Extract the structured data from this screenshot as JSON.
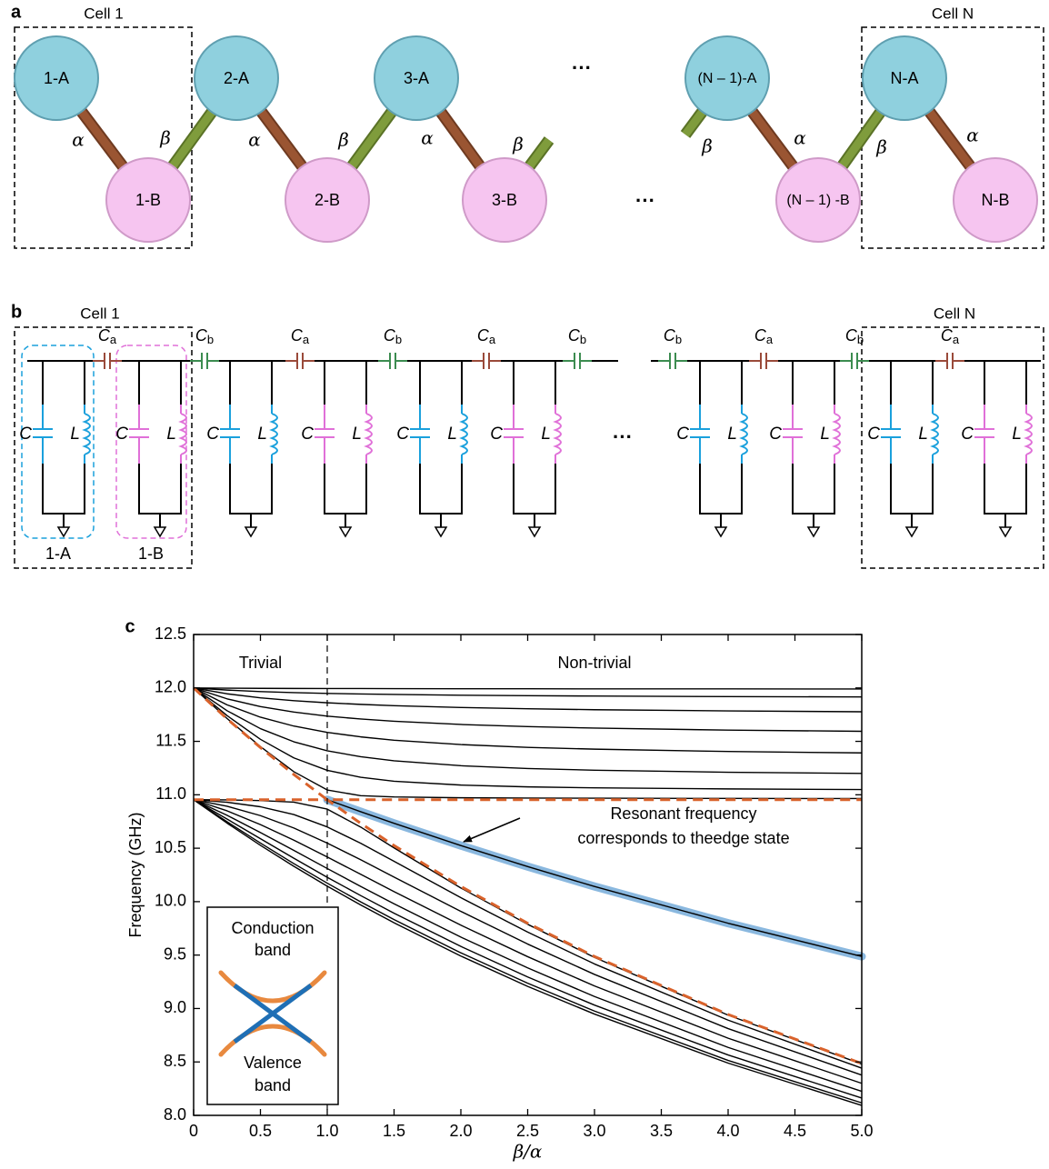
{
  "panel_a": {
    "label": "a",
    "cells": [
      "Cell 1",
      "Cell N"
    ],
    "sites": [
      "1-A",
      "1-B",
      "2-A",
      "2-B",
      "3-A",
      "3-B",
      "(N – 1)-A",
      "(N – 1) -B",
      "N-A",
      "N-B"
    ],
    "couplings": [
      "α",
      "β",
      "α",
      "β",
      "α",
      "β",
      "β",
      "α",
      "β",
      "α"
    ],
    "ellipses": [
      "···",
      "···"
    ]
  },
  "panel_b": {
    "label": "b",
    "cells": [
      "Cell 1",
      "Cell N"
    ],
    "capacitors": [
      {
        "symbol": "C",
        "sub": "a"
      },
      {
        "symbol": "C",
        "sub": "b"
      },
      {
        "symbol": "C",
        "sub": "a"
      },
      {
        "symbol": "C",
        "sub": "b"
      },
      {
        "symbol": "C",
        "sub": "a"
      },
      {
        "symbol": "C",
        "sub": "b"
      },
      {
        "symbol": "C",
        "sub": "b"
      },
      {
        "symbol": "C",
        "sub": "a"
      },
      {
        "symbol": "C",
        "sub": "b"
      },
      {
        "symbol": "C",
        "sub": "a"
      }
    ],
    "resonators": [
      {
        "c": "C",
        "l": "L"
      },
      {
        "c": "C",
        "l": "L"
      },
      {
        "c": "C",
        "l": "L"
      },
      {
        "c": "C",
        "l": "L"
      },
      {
        "c": "C",
        "l": "L"
      },
      {
        "c": "C",
        "l": "L"
      },
      {
        "c": "C",
        "l": "L"
      },
      {
        "c": "C",
        "l": "L"
      },
      {
        "c": "C",
        "l": "L"
      },
      {
        "c": "C",
        "l": "L"
      }
    ],
    "groups": [
      "1-A",
      "1-B"
    ],
    "ellipsis": "···"
  },
  "chart_data": {
    "type": "line",
    "panel_label": "c",
    "x_label": "β/α",
    "y_label": "Frequency (GHz)",
    "regions": [
      "Trivial",
      "Non-trivial"
    ],
    "divider_x": 1,
    "annotation": [
      "Resonant frequency",
      "corresponds to theedge state"
    ],
    "inset": {
      "top": [
        "Conduction",
        "band"
      ],
      "bottom": [
        "Valence",
        "band"
      ]
    },
    "xlim": [
      0,
      5
    ],
    "ylim": [
      8,
      12.5
    ],
    "xticks": [
      0,
      0.5,
      {
        "value": 1,
        "label": "1.0"
      },
      1.5,
      {
        "value": 2,
        "label": "2.0"
      },
      2.5,
      {
        "value": 3,
        "label": "3.0"
      },
      3.5,
      {
        "value": 4,
        "label": "4.0"
      },
      4.5,
      {
        "value": 5,
        "label": "5.0"
      }
    ],
    "yticks": [
      {
        "value": 8,
        "label": "8.0"
      },
      8.5,
      {
        "value": 9,
        "label": "9.0"
      },
      9.5,
      {
        "value": 10,
        "label": "10.0"
      },
      10.5,
      {
        "value": 11,
        "label": "11.0"
      },
      11.5,
      {
        "value": 12,
        "label": "12.0"
      },
      12.5
    ],
    "x": [
      0,
      0.25,
      0.5,
      0.75,
      1,
      1.25,
      1.5,
      2,
      2.5,
      3,
      4,
      5
    ],
    "series": [
      {
        "color": "#000000",
        "values": [
          12,
          11.998,
          11.996,
          11.995,
          11.994,
          11.994,
          11.993,
          11.992,
          11.992,
          11.991,
          11.991,
          11.99
        ]
      },
      {
        "color": "#000000",
        "values": [
          12,
          11.98,
          11.966,
          11.956,
          11.949,
          11.943,
          11.939,
          11.932,
          11.927,
          11.924,
          11.919,
          11.916
        ]
      },
      {
        "color": "#000000",
        "values": [
          12,
          11.945,
          11.907,
          11.881,
          11.861,
          11.846,
          11.834,
          11.817,
          11.805,
          11.796,
          11.785,
          11.777
        ]
      },
      {
        "color": "#000000",
        "values": [
          12,
          11.898,
          11.825,
          11.774,
          11.736,
          11.709,
          11.688,
          11.658,
          11.638,
          11.624,
          11.605,
          11.594
        ]
      },
      {
        "color": "#000000",
        "values": [
          12,
          11.842,
          11.726,
          11.643,
          11.584,
          11.542,
          11.511,
          11.47,
          11.444,
          11.427,
          11.405,
          11.392
        ]
      },
      {
        "color": "#000000",
        "values": [
          12,
          11.787,
          11.619,
          11.496,
          11.412,
          11.356,
          11.318,
          11.272,
          11.246,
          11.23,
          11.211,
          11.2
        ]
      },
      {
        "color": "#000000",
        "values": [
          12,
          11.741,
          11.519,
          11.345,
          11.229,
          11.164,
          11.127,
          11.091,
          11.074,
          11.065,
          11.055,
          11.049
        ]
      },
      {
        "color": "#000000",
        "values": [
          12,
          11.714,
          11.451,
          11.216,
          11.045,
          10.992,
          10.98,
          10.972,
          10.969,
          10.968,
          10.966,
          10.965
        ]
      },
      {
        "color": "#000000",
        "values": [
          10.954,
          10.735,
          10.527,
          10.331,
          10.145,
          9.969,
          9.802,
          9.491,
          9.207,
          8.948,
          8.489,
          8.093
        ]
      },
      {
        "color": "#000000",
        "values": [
          10.954,
          10.748,
          10.548,
          10.356,
          10.173,
          9.998,
          9.832,
          9.521,
          9.237,
          8.976,
          8.514,
          8.117
        ]
      },
      {
        "color": "#000000",
        "values": [
          10.954,
          10.773,
          10.589,
          10.406,
          10.228,
          10.057,
          9.892,
          9.581,
          9.295,
          9.032,
          8.565,
          8.162
        ]
      },
      {
        "color": "#000000",
        "values": [
          10.954,
          10.808,
          10.647,
          10.48,
          10.31,
          10.143,
          9.98,
          9.668,
          9.38,
          9.112,
          8.636,
          8.225
        ]
      },
      {
        "color": "#000000",
        "values": [
          10.954,
          10.85,
          10.721,
          10.575,
          10.418,
          10.256,
          10.094,
          9.78,
          9.485,
          9.211,
          8.722,
          8.3
        ]
      },
      {
        "color": "#000000",
        "values": [
          10.954,
          10.893,
          10.805,
          10.689,
          10.548,
          10.392,
          10.23,
          9.909,
          9.603,
          9.319,
          8.812,
          8.377
        ]
      },
      {
        "color": "#000000",
        "values": [
          10.954,
          10.93,
          10.888,
          10.815,
          10.699,
          10.547,
          10.378,
          10.037,
          9.715,
          9.417,
          8.891,
          8.442
        ]
      },
      {
        "color": "#000000",
        "values": [
          10.954,
          10.952,
          10.946,
          10.931,
          10.866,
          10.698,
          10.503,
          10.128,
          9.788,
          9.478,
          8.938,
          8.48
        ]
      },
      {
        "color": "#000000",
        "highlight": "#8ab8df",
        "values": [
          null,
          null,
          null,
          null,
          10.954,
          10.842,
          10.733,
          10.525,
          10.328,
          10.142,
          9.798,
          9.487
        ]
      },
      {
        "color": "#d9622b",
        "dashed": true,
        "values": [
          12,
          11.711,
          11.442,
          11.19,
          10.954,
          10.954,
          10.954,
          10.954,
          10.954,
          10.954,
          10.954,
          10.954
        ]
      },
      {
        "color": "#d9622b",
        "dashed": true,
        "values": [
          10.954,
          10.954,
          10.954,
          10.954,
          10.954,
          10.733,
          10.525,
          10.142,
          9.798,
          9.487,
          8.944,
          8.485
        ]
      }
    ]
  }
}
